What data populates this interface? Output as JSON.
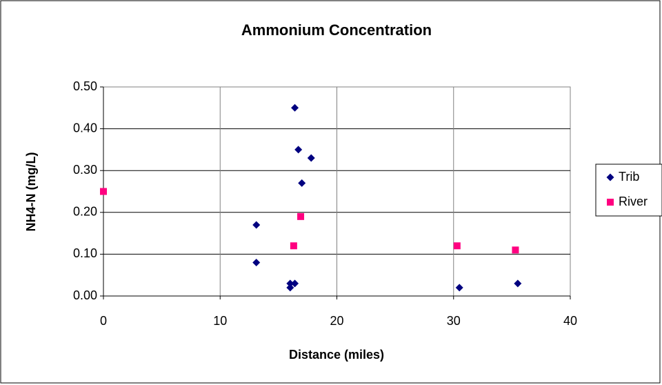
{
  "chart_data": {
    "type": "scatter",
    "title": "Ammonium Concentration",
    "x_label": "Distance (miles)",
    "y_label": "NH4-N (mg/L)",
    "xlim": [
      0,
      40
    ],
    "xticks": [
      0,
      10,
      20,
      30,
      40
    ],
    "ylim": [
      0,
      0.5
    ],
    "yticks": [
      {
        "value": 0,
        "label": "0.00"
      },
      {
        "value": 0.1,
        "label": "0.10"
      },
      {
        "value": 0.2,
        "label": "0.20"
      },
      {
        "value": 0.3,
        "label": "0.30"
      },
      {
        "value": 0.4,
        "label": "0.40"
      },
      {
        "value": 0.5,
        "label": "0.50"
      }
    ],
    "grid": true,
    "legend": "right",
    "series": [
      {
        "name": "Trib",
        "color": "#000080",
        "marker": "diamond",
        "x": [
          16.4,
          16.7,
          17.8,
          17.0,
          13.1,
          13.1,
          16.0,
          16.4,
          16.0,
          30.5,
          35.5
        ],
        "values": [
          0.45,
          0.35,
          0.33,
          0.27,
          0.17,
          0.08,
          0.03,
          0.03,
          0.02,
          0.02,
          0.03
        ]
      },
      {
        "name": "River",
        "color": "#ff0080",
        "marker": "square",
        "x": [
          0,
          16.3,
          16.9,
          30.3,
          35.3
        ],
        "values": [
          0.25,
          0.12,
          0.19,
          0.12,
          0.11
        ]
      }
    ]
  }
}
